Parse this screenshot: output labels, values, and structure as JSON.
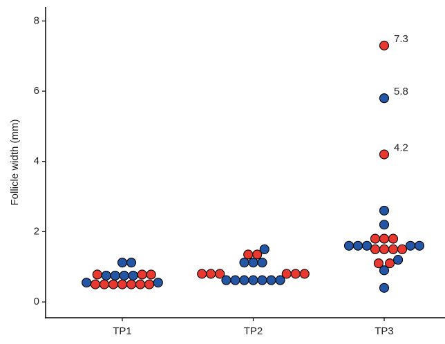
{
  "chart_data": {
    "type": "dotplot",
    "y_label": "Follicle width (mm)",
    "ylim": [
      -0.45,
      8.4
    ],
    "yticks": [
      0,
      2,
      4,
      6,
      8
    ],
    "categories": [
      "TP1",
      "TP2",
      "TP3"
    ],
    "groups": [
      {
        "points": [
          {
            "value": 0.5,
            "color": "#e8382f"
          },
          {
            "value": 0.5,
            "color": "#e8382f"
          },
          {
            "value": 0.5,
            "color": "#e8382f"
          },
          {
            "value": 0.5,
            "color": "#e8382f"
          },
          {
            "value": 0.5,
            "color": "#e8382f"
          },
          {
            "value": 0.5,
            "color": "#e8382f"
          },
          {
            "value": 0.5,
            "color": "#e8382f"
          },
          {
            "value": 0.55,
            "color": "#2357a6"
          },
          {
            "value": 0.55,
            "color": "#2357a6"
          },
          {
            "value": 0.78,
            "color": "#e8382f"
          },
          {
            "value": 0.78,
            "color": "#e8382f"
          },
          {
            "value": 0.78,
            "color": "#e8382f"
          },
          {
            "value": 0.75,
            "color": "#2357a6"
          },
          {
            "value": 0.75,
            "color": "#2357a6"
          },
          {
            "value": 0.75,
            "color": "#2357a6"
          },
          {
            "value": 0.75,
            "color": "#2357a6"
          },
          {
            "value": 1.12,
            "color": "#2357a6"
          },
          {
            "value": 1.12,
            "color": "#2357a6"
          }
        ]
      },
      {
        "points": [
          {
            "value": 0.62,
            "color": "#2357a6"
          },
          {
            "value": 0.62,
            "color": "#2357a6"
          },
          {
            "value": 0.62,
            "color": "#2357a6"
          },
          {
            "value": 0.62,
            "color": "#2357a6"
          },
          {
            "value": 0.62,
            "color": "#2357a6"
          },
          {
            "value": 0.62,
            "color": "#2357a6"
          },
          {
            "value": 0.62,
            "color": "#2357a6"
          },
          {
            "value": 0.8,
            "color": "#e8382f"
          },
          {
            "value": 0.8,
            "color": "#e8382f"
          },
          {
            "value": 0.8,
            "color": "#e8382f"
          },
          {
            "value": 0.8,
            "color": "#e8382f"
          },
          {
            "value": 0.8,
            "color": "#e8382f"
          },
          {
            "value": 0.8,
            "color": "#e8382f"
          },
          {
            "value": 1.12,
            "color": "#2357a6"
          },
          {
            "value": 1.12,
            "color": "#2357a6"
          },
          {
            "value": 1.12,
            "color": "#2357a6"
          },
          {
            "value": 1.35,
            "color": "#e8382f"
          },
          {
            "value": 1.35,
            "color": "#e8382f"
          },
          {
            "value": 1.5,
            "color": "#2357a6"
          }
        ]
      },
      {
        "points": [
          {
            "value": 0.4,
            "color": "#2357a6"
          },
          {
            "value": 0.9,
            "color": "#2357a6"
          },
          {
            "value": 1.1,
            "color": "#e8382f"
          },
          {
            "value": 1.1,
            "color": "#e8382f"
          },
          {
            "value": 1.2,
            "color": "#2357a6"
          },
          {
            "value": 1.5,
            "color": "#e8382f"
          },
          {
            "value": 1.5,
            "color": "#e8382f"
          },
          {
            "value": 1.5,
            "color": "#e8382f"
          },
          {
            "value": 1.5,
            "color": "#e8382f"
          },
          {
            "value": 1.6,
            "color": "#2357a6"
          },
          {
            "value": 1.6,
            "color": "#2357a6"
          },
          {
            "value": 1.6,
            "color": "#2357a6"
          },
          {
            "value": 1.6,
            "color": "#2357a6"
          },
          {
            "value": 1.6,
            "color": "#2357a6"
          },
          {
            "value": 1.8,
            "color": "#e8382f"
          },
          {
            "value": 1.8,
            "color": "#e8382f"
          },
          {
            "value": 1.8,
            "color": "#e8382f"
          },
          {
            "value": 2.2,
            "color": "#2357a6"
          },
          {
            "value": 2.6,
            "color": "#2357a6"
          },
          {
            "value": 4.2,
            "color": "#e8382f",
            "labeled": true
          },
          {
            "value": 5.8,
            "color": "#2357a6",
            "labeled": true
          },
          {
            "value": 7.3,
            "color": "#e8382f",
            "labeled": true
          }
        ]
      }
    ]
  }
}
